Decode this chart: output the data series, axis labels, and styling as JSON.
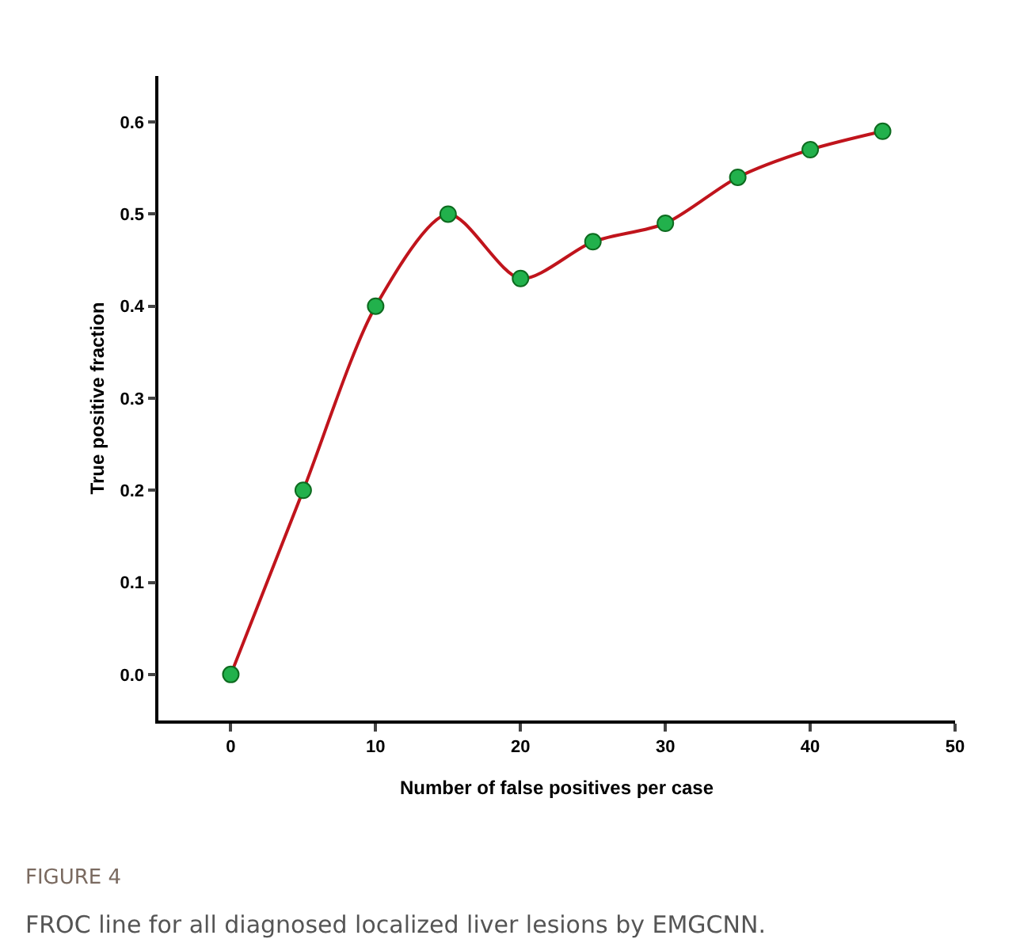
{
  "chart_data": {
    "type": "line",
    "xlabel": "Number of false positives per case",
    "ylabel": "True positive fraction",
    "annotations": [
      "FIGURE 4",
      "FROC line for all diagnosed localized liver lesions by EMGCNN."
    ],
    "x": [
      0,
      5,
      10,
      15,
      20,
      25,
      30,
      35,
      40,
      45
    ],
    "series": [
      {
        "color": "#c0141c",
        "colors": [
          "#22b14c",
          "#22b14c",
          "#22b14c",
          "#22b14c",
          "#22b14c",
          "#22b14c",
          "#22b14c",
          "#22b14c",
          "#22b14c",
          "#22b14c"
        ],
        "values": [
          0,
          0.2,
          0.4,
          0.5,
          0.43,
          0.47,
          0.49,
          0.54,
          0.57,
          0.59
        ]
      }
    ],
    "xlim": [
      -5,
      50
    ],
    "ylim": [
      -0.05,
      0.65
    ],
    "xticks": [
      0,
      10,
      20,
      30,
      40,
      50
    ],
    "yticks": [
      {
        "value": 0,
        "label": "0.0"
      },
      0.1,
      0.2,
      0.3,
      0.4,
      0.5,
      0.6
    ],
    "marker": "circle",
    "line_style": "solid"
  }
}
